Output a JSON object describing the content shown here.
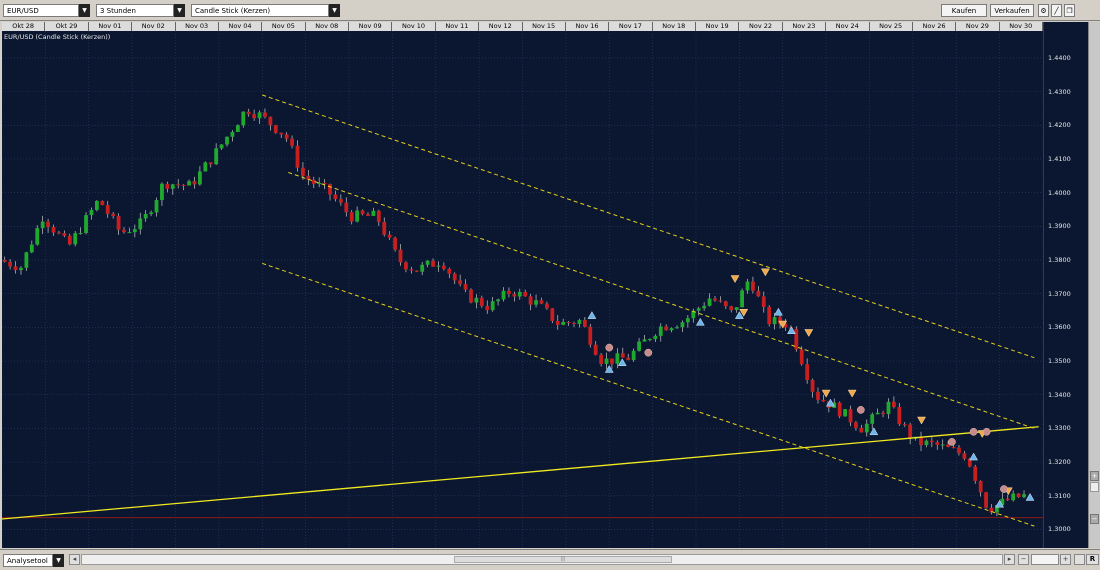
{
  "toolbar": {
    "symbol": "EUR/USD",
    "interval": "3 Stunden",
    "chart_type": "Candle Stick (Kerzen)",
    "buy_label": "Kaufen",
    "sell_label": "Verkaufen"
  },
  "chart_title": "EUR/USD (Candle Stick (Kerzen))",
  "bottom": {
    "analysis_tool": "Analysetool",
    "right_letter": "R"
  },
  "colors": {
    "background": "#0b1730",
    "grid": "#2b3b63",
    "bull": "#1faa2f",
    "bear": "#c81e1e",
    "channel": "#e6d11a",
    "trendline": "#f2ea20",
    "support": "#8a1a1a"
  },
  "chart_data": {
    "type": "candlestick",
    "title": "EUR/USD (Candle Stick (Kerzen))",
    "y_ticks": [
      1.44,
      1.43,
      1.42,
      1.41,
      1.4,
      1.39,
      1.38,
      1.37,
      1.36,
      1.35,
      1.34,
      1.33,
      1.32,
      1.31,
      1.3
    ],
    "y_tick_labels": [
      "1.4400",
      "1.4300",
      "1.4200",
      "1.4100",
      "1.4000",
      "1.3900",
      "1.3800",
      "1.3700",
      "1.3600",
      "1.3500",
      "1.3400",
      "1.3300",
      "1.3200",
      "1.3100",
      "1.3000"
    ],
    "ylim": [
      1.2945,
      1.448
    ],
    "date_labels": [
      "Okt 28",
      "Okt 29",
      "Nov 01",
      "Nov 02",
      "Nov 03",
      "Nov 04",
      "Nov 05",
      "Nov 08",
      "Nov 09",
      "Nov 10",
      "Nov 11",
      "Nov 12",
      "Nov 15",
      "Nov 16",
      "Nov 17",
      "Nov 18",
      "Nov 19",
      "Nov 22",
      "Nov 23",
      "Nov 24",
      "Nov 25",
      "Nov 26",
      "Nov 29",
      "Nov 30"
    ],
    "grid": true,
    "keypoints": [
      {
        "d": 0,
        "p": 1.38
      },
      {
        "d": 0.5,
        "p": 1.378
      },
      {
        "d": 1.0,
        "p": 1.393
      },
      {
        "d": 1.6,
        "p": 1.384
      },
      {
        "d": 2.3,
        "p": 1.398
      },
      {
        "d": 2.8,
        "p": 1.388
      },
      {
        "d": 3.3,
        "p": 1.391
      },
      {
        "d": 3.8,
        "p": 1.403
      },
      {
        "d": 4.4,
        "p": 1.402
      },
      {
        "d": 5.0,
        "p": 1.412
      },
      {
        "d": 5.7,
        "p": 1.425
      },
      {
        "d": 6.0,
        "p": 1.423
      },
      {
        "d": 6.6,
        "p": 1.417
      },
      {
        "d": 7.0,
        "p": 1.405
      },
      {
        "d": 7.6,
        "p": 1.4
      },
      {
        "d": 8.1,
        "p": 1.393
      },
      {
        "d": 8.7,
        "p": 1.393
      },
      {
        "d": 9.2,
        "p": 1.38
      },
      {
        "d": 9.6,
        "p": 1.377
      },
      {
        "d": 10.2,
        "p": 1.38
      },
      {
        "d": 10.7,
        "p": 1.37
      },
      {
        "d": 11.3,
        "p": 1.366
      },
      {
        "d": 11.8,
        "p": 1.371
      },
      {
        "d": 12.4,
        "p": 1.367
      },
      {
        "d": 12.9,
        "p": 1.361
      },
      {
        "d": 13.4,
        "p": 1.362
      },
      {
        "d": 13.9,
        "p": 1.35
      },
      {
        "d": 14.5,
        "p": 1.351
      },
      {
        "d": 15.2,
        "p": 1.36
      },
      {
        "d": 15.8,
        "p": 1.362
      },
      {
        "d": 16.4,
        "p": 1.369
      },
      {
        "d": 16.9,
        "p": 1.364
      },
      {
        "d": 17.3,
        "p": 1.375
      },
      {
        "d": 17.7,
        "p": 1.362
      },
      {
        "d": 18.2,
        "p": 1.361
      },
      {
        "d": 18.8,
        "p": 1.34
      },
      {
        "d": 19.3,
        "p": 1.336
      },
      {
        "d": 19.9,
        "p": 1.33
      },
      {
        "d": 20.5,
        "p": 1.337
      },
      {
        "d": 21.1,
        "p": 1.326
      },
      {
        "d": 21.6,
        "p": 1.325
      },
      {
        "d": 22.3,
        "p": 1.322
      },
      {
        "d": 22.8,
        "p": 1.306
      },
      {
        "d": 23.3,
        "p": 1.309
      },
      {
        "d": 23.6,
        "p": 1.31
      }
    ],
    "channel_lines": [
      {
        "d1": 6.0,
        "p1": 1.429,
        "d2": 23.8,
        "p2": 1.351
      },
      {
        "d1": 6.6,
        "p1": 1.406,
        "d2": 23.8,
        "p2": 1.33
      },
      {
        "d1": 6.0,
        "p1": 1.379,
        "d2": 23.8,
        "p2": 1.301
      }
    ],
    "trendline": {
      "d1": -0.1,
      "p1": 1.303,
      "d2": 23.9,
      "p2": 1.3305
    },
    "support_line": {
      "p": 1.3035
    },
    "signals_up": [
      {
        "d": 13.6,
        "p": 1.3635
      },
      {
        "d": 14.0,
        "p": 1.3475
      },
      {
        "d": 14.3,
        "p": 1.3495
      },
      {
        "d": 16.1,
        "p": 1.3615
      },
      {
        "d": 17.0,
        "p": 1.3635
      },
      {
        "d": 17.9,
        "p": 1.3645
      },
      {
        "d": 18.2,
        "p": 1.359
      },
      {
        "d": 19.1,
        "p": 1.3375
      },
      {
        "d": 20.1,
        "p": 1.329
      },
      {
        "d": 22.4,
        "p": 1.3215
      },
      {
        "d": 23.0,
        "p": 1.3075
      },
      {
        "d": 23.7,
        "p": 1.3095
      }
    ],
    "signals_down": [
      {
        "d": 16.9,
        "p": 1.3745
      },
      {
        "d": 17.1,
        "p": 1.3645
      },
      {
        "d": 17.6,
        "p": 1.3765
      },
      {
        "d": 18.0,
        "p": 1.361
      },
      {
        "d": 18.6,
        "p": 1.3585
      },
      {
        "d": 19.0,
        "p": 1.3405
      },
      {
        "d": 19.6,
        "p": 1.3405
      },
      {
        "d": 21.2,
        "p": 1.3325
      },
      {
        "d": 22.6,
        "p": 1.3285
      },
      {
        "d": 23.2,
        "p": 1.3115
      }
    ],
    "signals_circle": [
      {
        "d": 14.0,
        "p": 1.354
      },
      {
        "d": 14.9,
        "p": 1.3525
      },
      {
        "d": 19.8,
        "p": 1.3355
      },
      {
        "d": 21.9,
        "p": 1.326
      },
      {
        "d": 22.4,
        "p": 1.329
      },
      {
        "d": 22.7,
        "p": 1.329
      },
      {
        "d": 23.1,
        "p": 1.312
      }
    ]
  }
}
